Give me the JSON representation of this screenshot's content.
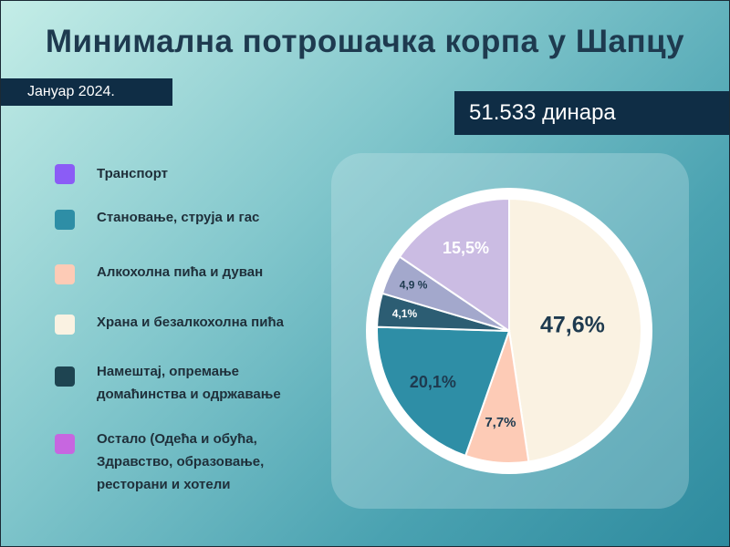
{
  "title": "Минимална потрошачка корпа у Шапцу",
  "date_label": "Јануар 2024.",
  "total_label": "51.533 динара",
  "legend": [
    {
      "lines": [
        "Транспорт"
      ],
      "color": "#8b5cf6"
    },
    {
      "lines": [
        "Становање, струја и гас"
      ],
      "color": "#2e8ea6"
    },
    {
      "lines": [
        "Алкохолна пића и дуван"
      ],
      "color": "#fdcbb6"
    },
    {
      "lines": [
        "Храна и безалкохолна пића"
      ],
      "color": "#faf2e2"
    },
    {
      "lines": [
        "Намештај, опремање",
        "домаћинства и одржавање"
      ],
      "color": "#1e4451"
    },
    {
      "lines": [
        "Остало (Одећа и обућа,",
        "Здравство, образовање,",
        "ресторани и хотели"
      ],
      "color": "#c766e0"
    }
  ],
  "chart_data": {
    "type": "pie",
    "start_angle_deg": 0,
    "direction": "clockwise",
    "slices": [
      {
        "value": 47.6,
        "label": "47,6%",
        "color": "#faf2e2",
        "text_color": "#1e3a4f"
      },
      {
        "value": 7.7,
        "label": "7,7%",
        "color": "#fdcbb6",
        "text_color": "#1e3a4f"
      },
      {
        "value": 20.1,
        "label": "20,1%",
        "color": "#2e8ea6",
        "text_color": "#1e3a4f"
      },
      {
        "value": 4.1,
        "label": "4,1%",
        "color": "#2c5d73",
        "text_color": "#ffffff"
      },
      {
        "value": 4.9,
        "label": "4,9 %",
        "color": "#a3a8cc",
        "text_color": "#1e3a4f"
      },
      {
        "value": 15.5,
        "label": "15,5%",
        "color": "#cbbce3",
        "text_color": "#ffffff"
      }
    ]
  }
}
